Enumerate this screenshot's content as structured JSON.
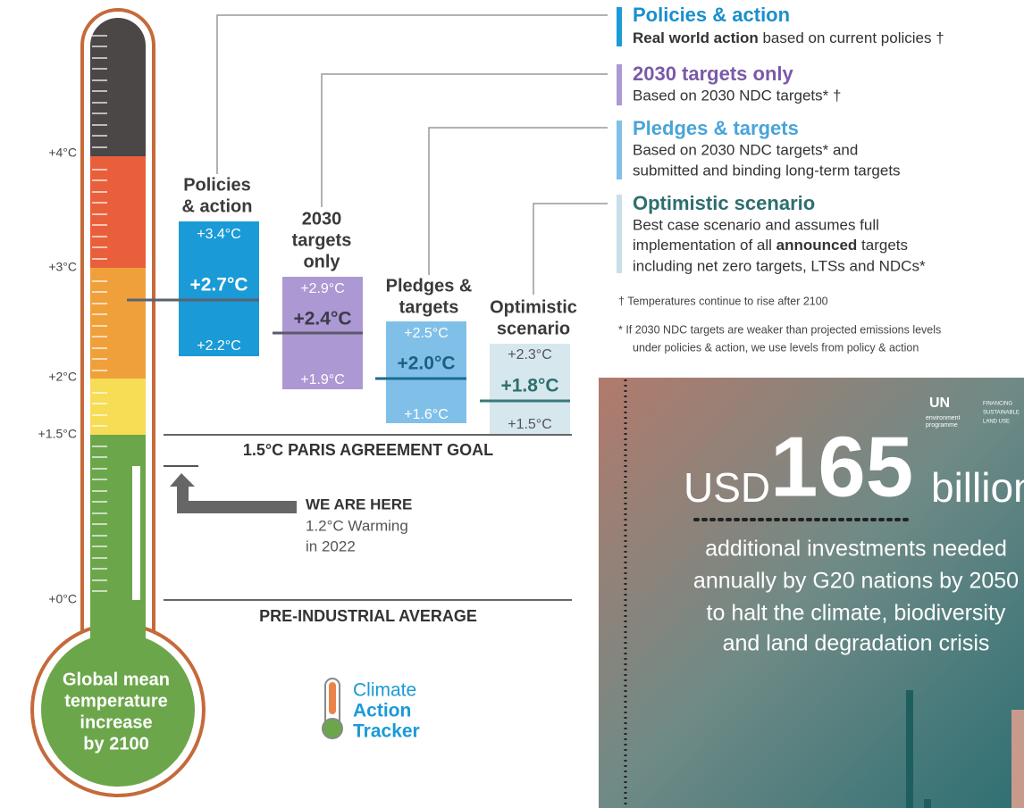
{
  "thermometer": {
    "ticks": [
      "+4°C",
      "+3°C",
      "+2°C",
      "+1.5°C",
      "+0°C"
    ],
    "bulb_label": [
      "Global mean",
      "temperature",
      "increase",
      "by 2100"
    ]
  },
  "scenarios": [
    {
      "title": [
        "Policies",
        "& action"
      ],
      "high": "+3.4°C",
      "mid": "+2.7°C",
      "low": "+2.2°C"
    },
    {
      "title": [
        "2030",
        "targets",
        "only"
      ],
      "high": "+2.9°C",
      "mid": "+2.4°C",
      "low": "+1.9°C"
    },
    {
      "title": [
        "Pledges &",
        "targets"
      ],
      "high": "+2.5°C",
      "mid": "+2.0°C",
      "low": "+1.6°C"
    },
    {
      "title": [
        "Optimistic",
        "scenario"
      ],
      "high": "+2.3°C",
      "mid": "+1.8°C",
      "low": "+1.5°C"
    }
  ],
  "paris_goal": "1.5°C PARIS AGREEMENT GOAL",
  "we_are_here": {
    "title": "WE ARE HERE",
    "lines": [
      "1.2°C Warming",
      "in 2022"
    ]
  },
  "pre_industrial": "PRE-INDUSTRIAL AVERAGE",
  "logo": [
    "Climate",
    "Action",
    "Tracker"
  ],
  "legend": [
    {
      "title": "Policies & action",
      "lines": [
        [
          "Real world action",
          " based on current policies †"
        ]
      ]
    },
    {
      "title": "2030 targets only",
      "lines": [
        [
          "Based on 2030 NDC targets* †"
        ]
      ]
    },
    {
      "title": "Pledges & targets",
      "lines": [
        [
          "Based on 2030 NDC targets* and"
        ],
        [
          "submitted and binding long-term targets"
        ]
      ]
    },
    {
      "title": "Optimistic scenario",
      "lines": [
        [
          "Best case scenario and assumes full"
        ],
        [
          "implementation of all ",
          "announced",
          " targets"
        ],
        [
          "including net zero targets, LTSs and NDCs*"
        ]
      ]
    }
  ],
  "notes": [
    "† Temperatures continue to rise after 2100",
    "* If 2030 NDC targets are weaker than projected emissions levels",
    "under policies & action, we use levels from policy & action"
  ],
  "panel": {
    "org": "UN",
    "org_sub": [
      "environment",
      "programme"
    ],
    "partner": [
      "FINANCING",
      "SUSTAINABLE",
      "LAND USE"
    ],
    "currency": "USD",
    "amount": "165",
    "unit": "billion",
    "lines": [
      "additional investments needed",
      "annually by G20 nations by 2050",
      "to halt the climate, biodiversity",
      "and land degradation crisis"
    ]
  }
}
